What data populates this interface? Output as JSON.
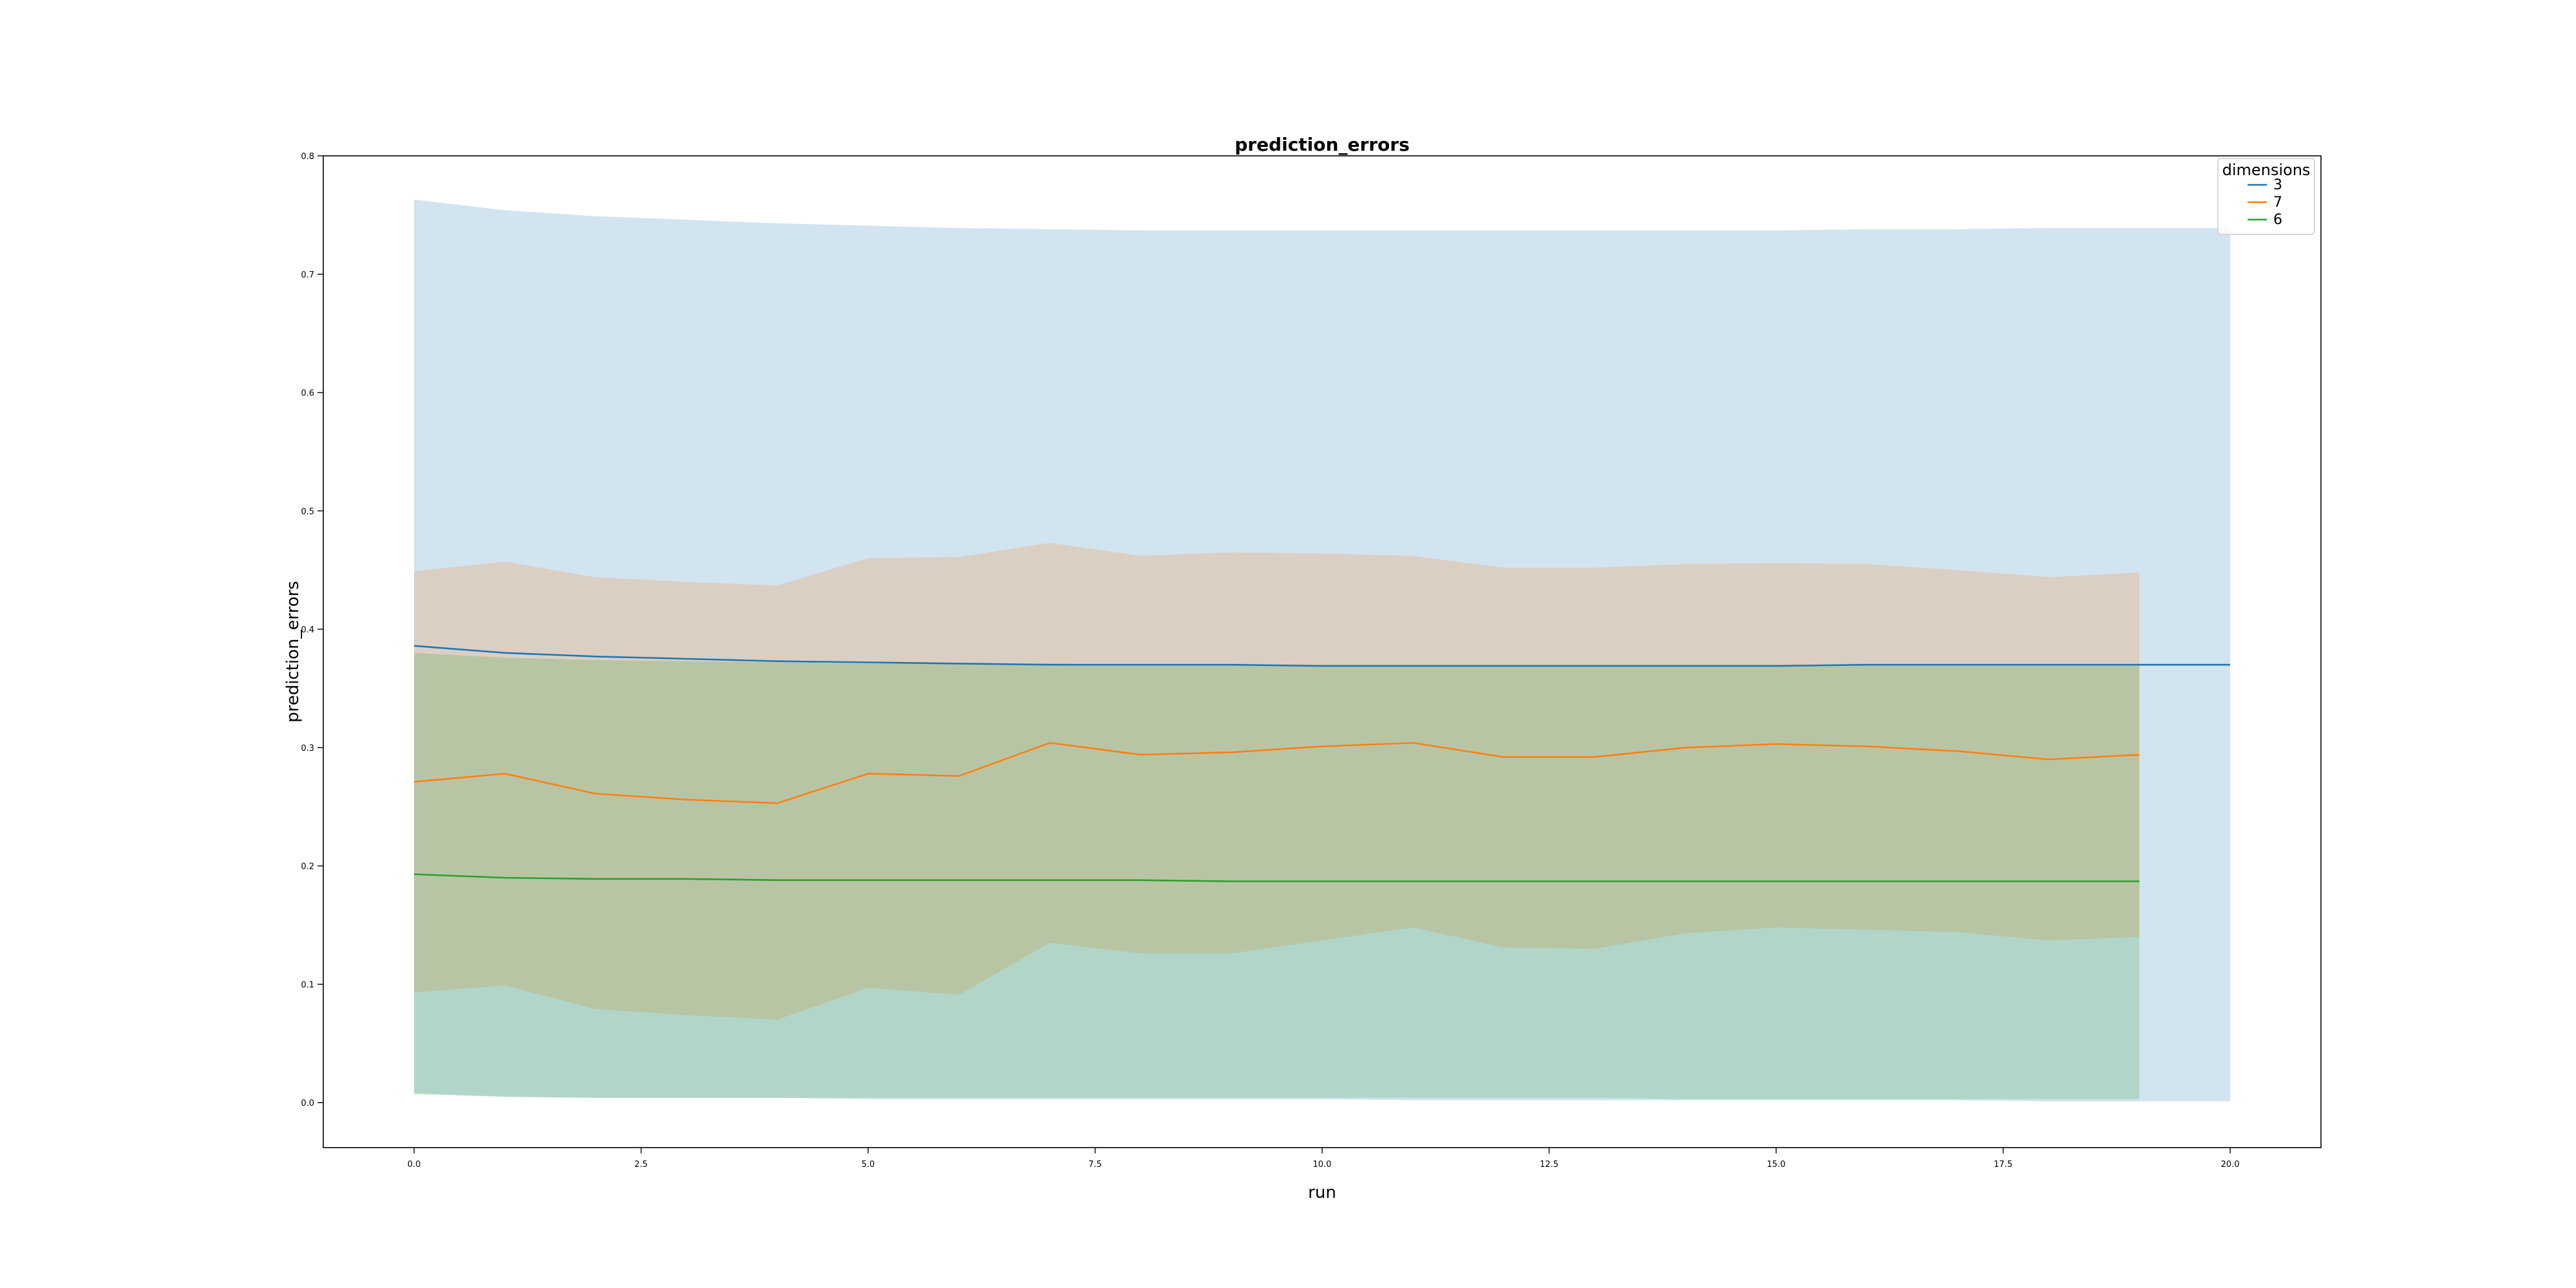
{
  "chart_data": {
    "type": "line",
    "title": "prediction_errors",
    "xlabel": "run",
    "ylabel": "prediction_errors",
    "xlim": [
      -1.0,
      21.0
    ],
    "ylim": [
      -0.038,
      0.8
    ],
    "xticks": [
      "0.0",
      "2.5",
      "5.0",
      "7.5",
      "10.0",
      "12.5",
      "15.0",
      "17.5",
      "20.0"
    ],
    "yticks": [
      "0.0",
      "0.1",
      "0.2",
      "0.3",
      "0.4",
      "0.5",
      "0.6",
      "0.7",
      "0.8"
    ],
    "grid": false,
    "legend": {
      "title": "dimensions",
      "position": "top-right"
    },
    "series": [
      {
        "name": "3",
        "color": "#1f77b4",
        "x": [
          0,
          1,
          2,
          3,
          4,
          5,
          6,
          7,
          8,
          9,
          10,
          11,
          12,
          13,
          14,
          15,
          16,
          17,
          18,
          19,
          20
        ],
        "y": [
          0.386,
          0.38,
          0.377,
          0.375,
          0.373,
          0.372,
          0.371,
          0.37,
          0.37,
          0.37,
          0.369,
          0.369,
          0.369,
          0.369,
          0.369,
          0.369,
          0.37,
          0.37,
          0.37,
          0.37,
          0.37
        ],
        "upper": [
          0.763,
          0.754,
          0.749,
          0.746,
          0.743,
          0.741,
          0.739,
          0.738,
          0.737,
          0.737,
          0.737,
          0.737,
          0.737,
          0.737,
          0.737,
          0.737,
          0.738,
          0.738,
          0.739,
          0.739,
          0.739
        ],
        "lower": [
          0.008,
          0.005,
          0.004,
          0.004,
          0.004,
          0.003,
          0.003,
          0.003,
          0.003,
          0.003,
          0.003,
          0.002,
          0.002,
          0.002,
          0.002,
          0.002,
          0.002,
          0.002,
          0.001,
          0.001,
          0.001
        ]
      },
      {
        "name": "7",
        "color": "#ff7f0e",
        "x": [
          0,
          1,
          2,
          3,
          4,
          5,
          6,
          7,
          8,
          9,
          10,
          11,
          12,
          13,
          14,
          15,
          16,
          17,
          18,
          19
        ],
        "y": [
          0.271,
          0.278,
          0.261,
          0.256,
          0.253,
          0.278,
          0.276,
          0.304,
          0.294,
          0.296,
          0.301,
          0.304,
          0.292,
          0.292,
          0.3,
          0.303,
          0.301,
          0.297,
          0.29,
          0.294
        ],
        "upper": [
          0.449,
          0.457,
          0.444,
          0.44,
          0.437,
          0.46,
          0.461,
          0.473,
          0.462,
          0.465,
          0.464,
          0.462,
          0.452,
          0.452,
          0.455,
          0.456,
          0.455,
          0.45,
          0.444,
          0.448
        ],
        "lower": [
          0.093,
          0.099,
          0.079,
          0.074,
          0.07,
          0.097,
          0.091,
          0.135,
          0.126,
          0.126,
          0.137,
          0.148,
          0.131,
          0.13,
          0.143,
          0.148,
          0.146,
          0.144,
          0.137,
          0.14
        ]
      },
      {
        "name": "6",
        "color": "#2ca02c",
        "x": [
          0,
          1,
          2,
          3,
          4,
          5,
          6,
          7,
          8,
          9,
          10,
          11,
          12,
          13,
          14,
          15,
          16,
          17,
          18,
          19
        ],
        "y": [
          0.193,
          0.19,
          0.189,
          0.189,
          0.188,
          0.188,
          0.188,
          0.188,
          0.188,
          0.187,
          0.187,
          0.187,
          0.187,
          0.187,
          0.187,
          0.187,
          0.187,
          0.187,
          0.187,
          0.187
        ],
        "upper": [
          0.38,
          0.376,
          0.374,
          0.373,
          0.372,
          0.371,
          0.371,
          0.371,
          0.37,
          0.37,
          0.37,
          0.37,
          0.37,
          0.37,
          0.37,
          0.37,
          0.37,
          0.37,
          0.37,
          0.37
        ],
        "lower": [
          0.007,
          0.005,
          0.004,
          0.004,
          0.004,
          0.004,
          0.004,
          0.004,
          0.004,
          0.004,
          0.004,
          0.004,
          0.004,
          0.004,
          0.003,
          0.003,
          0.003,
          0.003,
          0.003,
          0.003
        ]
      }
    ]
  }
}
